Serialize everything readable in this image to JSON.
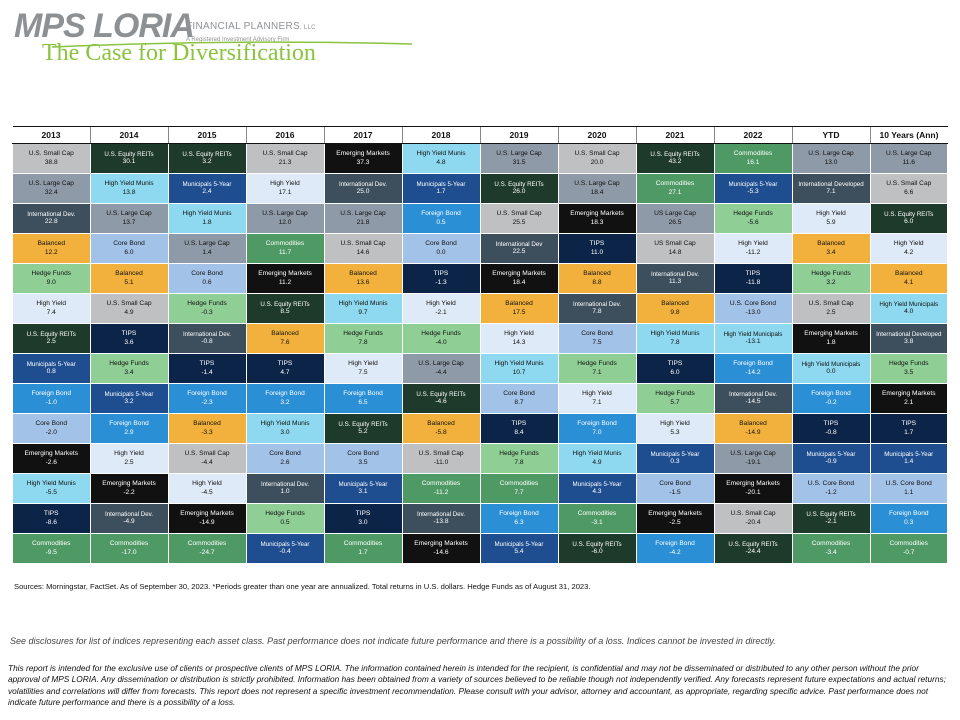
{
  "brand": {
    "logo_main": "MPS LORIA",
    "logo_fp": "FINANCIAL PLANNERS",
    "logo_llc": ", LLC",
    "logo_sub": "A Registered Investment Advisory Firm"
  },
  "title": "The Case for Diversification",
  "colors": {
    "U.S. Small Cap": "#bfc0c2",
    "U.S. Large Cap": "#8e9aa8",
    "US Large Cap": "#8e9aa8",
    "US Small Cap": "#bfc0c2",
    "U.S. Equity REITs": "#1e3a2a",
    "International Dev.": "#3d4f5d",
    "International Developed": "#3d4f5d",
    "International Dev": "#3d4f5d",
    "Balanced": "#f2b13c",
    "Hedge Funds": "#8fcf95",
    "High Yield": "#deeaf7",
    "Municipals 5-Year": "#1f4e90",
    "Foreign Bond": "#2a8fd4",
    "Core Bond": "#a3c2e8",
    "U.S. Core Bond": "#a3c2e8",
    "Emerging Markets": "#111111",
    "High Yield Munis": "#8ed9ef",
    "High Yield Municipals": "#8ed9ef",
    "TIPS": "#0b2448",
    "Commodities": "#4f9a64"
  },
  "dark_text": [
    "U.S. Equity REITs",
    "International Dev.",
    "International Developed",
    "International Dev",
    "Municipals 5-Year",
    "Foreign Bond",
    "Emerging Markets",
    "TIPS",
    "Commodities"
  ],
  "columns": [
    "2013",
    "2014",
    "2015",
    "2016",
    "2017",
    "2018",
    "2019",
    "2020",
    "2021",
    "2022",
    "YTD",
    "10 Years (Ann)"
  ],
  "rows": [
    [
      [
        "U.S. Small Cap",
        "38.8"
      ],
      [
        "U.S. Equity REITs",
        "30.1"
      ],
      [
        "U.S. Equity REITs",
        "3.2"
      ],
      [
        "U.S. Small Cap",
        "21.3"
      ],
      [
        "Emerging Markets",
        "37.3"
      ],
      [
        "High Yield Munis",
        "4.8"
      ],
      [
        "U.S. Large Cap",
        "31.5"
      ],
      [
        "U.S. Small Cap",
        "20.0"
      ],
      [
        "U.S. Equity REITs",
        "43.2"
      ],
      [
        "Commodities",
        "16.1"
      ],
      [
        "U.S. Large Cap",
        "13.0"
      ],
      [
        "U.S. Large Cap",
        "11.6"
      ]
    ],
    [
      [
        "U.S. Large Cap",
        "32.4"
      ],
      [
        "High Yield Munis",
        "13.8"
      ],
      [
        "Municipals 5-Year",
        "2.4"
      ],
      [
        "High Yield",
        "17.1"
      ],
      [
        "International Dev.",
        "25.0"
      ],
      [
        "Municipals 5-Year",
        "1.7"
      ],
      [
        "U.S. Equity REITs",
        "26.0"
      ],
      [
        "U.S. Large Cap",
        "18.4"
      ],
      [
        "Commodities",
        "27.1"
      ],
      [
        "Municipals 5-Year",
        "-5.3"
      ],
      [
        "International Developed",
        "7.1"
      ],
      [
        "U.S. Small Cap",
        "6.6"
      ]
    ],
    [
      [
        "International Dev.",
        "22.8"
      ],
      [
        "U.S. Large Cap",
        "13.7"
      ],
      [
        "High Yield Munis",
        "1.8"
      ],
      [
        "U.S. Large Cap",
        "12.0"
      ],
      [
        "U.S. Large Cap",
        "21.8"
      ],
      [
        "Foreign Bond",
        "0.5"
      ],
      [
        "U.S. Small Cap",
        "25.5"
      ],
      [
        "Emerging Markets",
        "18.3"
      ],
      [
        "US Large Cap",
        "26.5"
      ],
      [
        "Hedge Funds",
        "-5.6"
      ],
      [
        "High Yield",
        "5.9"
      ],
      [
        "U.S. Equity REITs",
        "6.0"
      ]
    ],
    [
      [
        "Balanced",
        "12.2"
      ],
      [
        "Core Bond",
        "6.0"
      ],
      [
        "U.S. Large Cap",
        "1.4"
      ],
      [
        "Commodities",
        "11.7"
      ],
      [
        "U.S. Small Cap",
        "14.6"
      ],
      [
        "Core Bond",
        "0.0"
      ],
      [
        "International Dev",
        "22.5"
      ],
      [
        "TIPS",
        "11.0"
      ],
      [
        "US Small Cap",
        "14.8"
      ],
      [
        "High Yield",
        "-11.2"
      ],
      [
        "Balanced",
        "3.4"
      ],
      [
        "High Yield",
        "4.2"
      ]
    ],
    [
      [
        "Hedge Funds",
        "9.0"
      ],
      [
        "Balanced",
        "5.1"
      ],
      [
        "Core Bond",
        "0.6"
      ],
      [
        "Emerging Markets",
        "11.2"
      ],
      [
        "Balanced",
        "13.6"
      ],
      [
        "TIPS",
        "-1.3"
      ],
      [
        "Emerging Markets",
        "18.4"
      ],
      [
        "Balanced",
        "8.8"
      ],
      [
        "International Dev.",
        "11.3"
      ],
      [
        "TIPS",
        "-11.8"
      ],
      [
        "Hedge Funds",
        "3.2"
      ],
      [
        "Balanced",
        "4.1"
      ]
    ],
    [
      [
        "High Yield",
        "7.4"
      ],
      [
        "U.S. Small Cap",
        "4.9"
      ],
      [
        "Hedge Funds",
        "-0.3"
      ],
      [
        "U.S. Equity REITs",
        "8.5"
      ],
      [
        "High Yield Munis",
        "9.7"
      ],
      [
        "High Yield",
        "-2.1"
      ],
      [
        "Balanced",
        "17.5"
      ],
      [
        "International Dev.",
        "7.8"
      ],
      [
        "Balanced",
        "9.8"
      ],
      [
        "U.S. Core Bond",
        "-13.0"
      ],
      [
        "U.S. Small Cap",
        "2.5"
      ],
      [
        "High Yield Municipals",
        "4.0"
      ]
    ],
    [
      [
        "U.S. Equity REITs",
        "2.5"
      ],
      [
        "TIPS",
        "3.6"
      ],
      [
        "International Dev.",
        "-0.8"
      ],
      [
        "Balanced",
        "7.6"
      ],
      [
        "Hedge Funds",
        "7.8"
      ],
      [
        "Hedge Funds",
        "-4.0"
      ],
      [
        "High Yield",
        "14.3"
      ],
      [
        "Core Bond",
        "7.5"
      ],
      [
        "High Yield Munis",
        "7.8"
      ],
      [
        "High Yield Municipals",
        "-13.1"
      ],
      [
        "Emerging Markets",
        "1.8"
      ],
      [
        "International Developed",
        "3.8"
      ]
    ],
    [
      [
        "Municipals 5-Year",
        "0.8"
      ],
      [
        "Hedge Funds",
        "3.4"
      ],
      [
        "TIPS",
        "-1.4"
      ],
      [
        "TIPS",
        "4.7"
      ],
      [
        "High Yield",
        "7.5"
      ],
      [
        "U.S. Large Cap",
        "-4.4"
      ],
      [
        "High Yield Munis",
        "10.7"
      ],
      [
        "Hedge Funds",
        "7.1"
      ],
      [
        "TIPS",
        "6.0"
      ],
      [
        "Foreign Bond",
        "-14.2"
      ],
      [
        "High Yield Municipals",
        "0.0"
      ],
      [
        "Hedge Funds",
        "3.5"
      ]
    ],
    [
      [
        "Foreign Bond",
        "-1.0"
      ],
      [
        "Municipals 5-Year",
        "3.2"
      ],
      [
        "Foreign Bond",
        "-2.3"
      ],
      [
        "Foreign Bond",
        "3.2"
      ],
      [
        "Foreign Bond",
        "6.5"
      ],
      [
        "U.S. Equity REITs",
        "-4.6"
      ],
      [
        "Core Bond",
        "8.7"
      ],
      [
        "High Yield",
        "7.1"
      ],
      [
        "Hedge Funds",
        "5.7"
      ],
      [
        "International Dev.",
        "-14.5"
      ],
      [
        "Foreign Bond",
        "-0.2"
      ],
      [
        "Emerging Markets",
        "2.1"
      ]
    ],
    [
      [
        "Core Bond",
        "-2.0"
      ],
      [
        "Foreign Bond",
        "2.9"
      ],
      [
        "Balanced",
        "-3.3"
      ],
      [
        "High Yield Munis",
        "3.0"
      ],
      [
        "U.S. Equity REITs",
        "5.2"
      ],
      [
        "Balanced",
        "-5.8"
      ],
      [
        "TIPS",
        "8.4"
      ],
      [
        "Foreign Bond",
        "7.0"
      ],
      [
        "High Yield",
        "5.3"
      ],
      [
        "Balanced",
        "-14.9"
      ],
      [
        "TIPS",
        "-0.8"
      ],
      [
        "TIPS",
        "1.7"
      ]
    ],
    [
      [
        "Emerging Markets",
        "-2.6"
      ],
      [
        "High Yield",
        "2.5"
      ],
      [
        "U.S. Small Cap",
        "-4.4"
      ],
      [
        "Core Bond",
        "2.6"
      ],
      [
        "Core Bond",
        "3.5"
      ],
      [
        "U.S. Small Cap",
        "-11.0"
      ],
      [
        "Hedge Funds",
        "7.8"
      ],
      [
        "High Yield Munis",
        "4.9"
      ],
      [
        "Municipals 5-Year",
        "0.3"
      ],
      [
        "U.S. Large Cap",
        "-19.1"
      ],
      [
        "Municipals 5-Year",
        "-0.9"
      ],
      [
        "Municipals 5-Year",
        "1.4"
      ]
    ],
    [
      [
        "High Yield Munis",
        "-5.5"
      ],
      [
        "Emerging Markets",
        "-2.2"
      ],
      [
        "High Yield",
        "-4.5"
      ],
      [
        "International Dev.",
        "1.0"
      ],
      [
        "Municipals 5-Year",
        "3.1"
      ],
      [
        "Commodities",
        "-11.2"
      ],
      [
        "Commodities",
        "7.7"
      ],
      [
        "Municipals 5-Year",
        "4.3"
      ],
      [
        "Core Bond",
        "-1.5"
      ],
      [
        "Emerging Markets",
        "-20.1"
      ],
      [
        "U.S. Core Bond",
        "-1.2"
      ],
      [
        "U.S. Core Bond",
        "1.1"
      ]
    ],
    [
      [
        "TIPS",
        "-8.6"
      ],
      [
        "International Dev.",
        "-4.9"
      ],
      [
        "Emerging Markets",
        "-14.9"
      ],
      [
        "Hedge Funds",
        "0.5"
      ],
      [
        "TIPS",
        "3.0"
      ],
      [
        "International Dev.",
        "-13.8"
      ],
      [
        "Foreign Bond",
        "6.3"
      ],
      [
        "Commodities",
        "-3.1"
      ],
      [
        "Emerging Markets",
        "-2.5"
      ],
      [
        "U.S. Small Cap",
        "-20.4"
      ],
      [
        "U.S. Equity REITs",
        "-2.1"
      ],
      [
        "Foreign Bond",
        "0.3"
      ]
    ],
    [
      [
        "Commodities",
        "-9.5"
      ],
      [
        "Commodities",
        "-17.0"
      ],
      [
        "Commodities",
        "-24.7"
      ],
      [
        "Municipals 5-Year",
        "-0.4"
      ],
      [
        "Commodities",
        "1.7"
      ],
      [
        "Emerging Markets",
        "-14.6"
      ],
      [
        "Municipals 5-Year",
        "5.4"
      ],
      [
        "U.S. Equity REITs",
        "-6.0"
      ],
      [
        "Foreign Bond",
        "-4.2"
      ],
      [
        "U.S. Equity REITs",
        "-24.4"
      ],
      [
        "Commodities",
        "-3.4"
      ],
      [
        "Commodities",
        "-0.7"
      ]
    ]
  ],
  "sources": "Sources: Morningstar, FactSet. As of September 30, 2023. *Periods greater than one year are annualized. Total returns in U.S. dollars. Hedge Funds as of August 31, 2023.",
  "disclosure": "See disclosures for list of indices representing each asset class. Past performance does not indicate future performance and there is a possibility of a loss. Indices cannot be invested in directly.",
  "report": "This report is intended for the exclusive use of clients or prospective clients of MPS LORIA. The information contained herein is intended for the recipient, is confidential and may not be disseminated or distributed to any other person without the prior approval of MPS LORIA. Any dissemination or distribution is strictly prohibited. Information has been obtained from a variety of sources believed to be reliable though not independently verified. Any forecasts represent future expectations and actual returns; volatilities and correlations will differ from forecasts. This report does not represent a specific investment recommendation. Please consult with your advisor, attorney and accountant, as appropriate, regarding specific advice. Past performance does not indicate future performance and there is a possibility of a loss."
}
